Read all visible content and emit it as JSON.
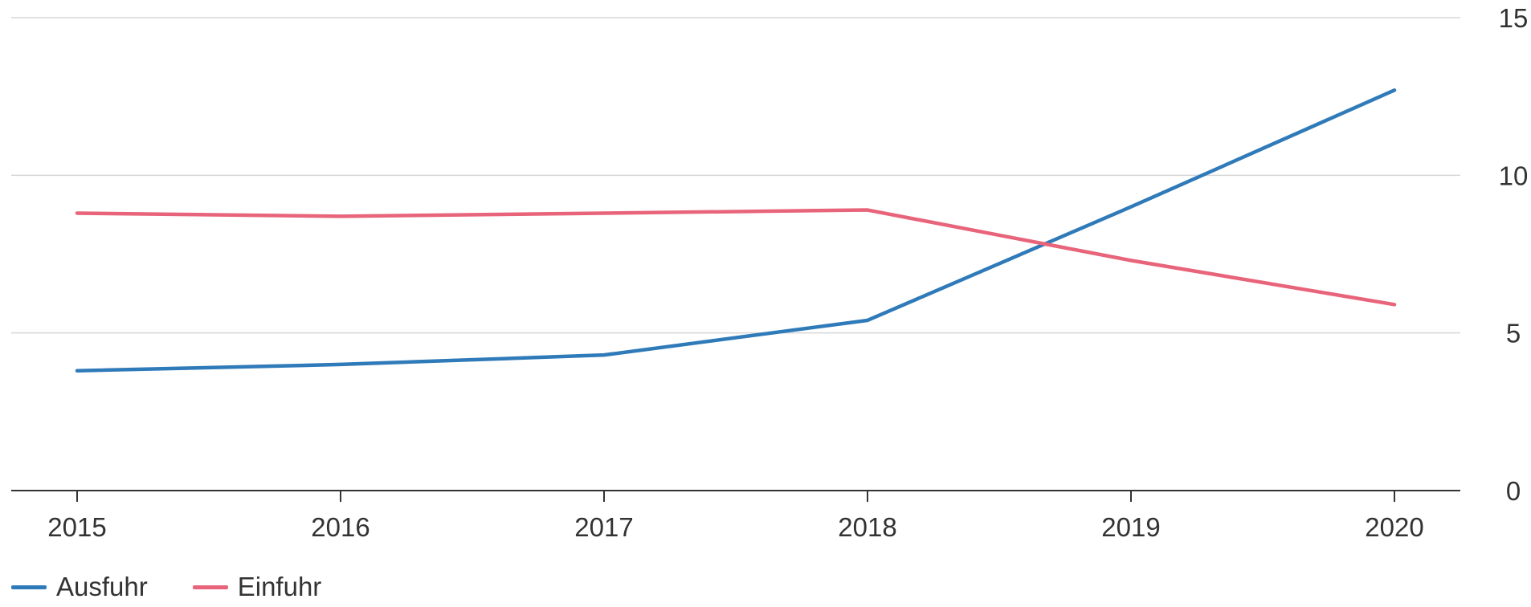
{
  "chart_data": {
    "type": "line",
    "title": "",
    "xlabel": "",
    "ylabel": "",
    "categories": [
      "2015",
      "2016",
      "2017",
      "2018",
      "2019",
      "2020"
    ],
    "ylim": [
      0,
      15
    ],
    "yticks": [
      "0",
      "5",
      "10",
      "15"
    ],
    "y_axis_side": "right",
    "grid": true,
    "legend_position": "bottom-left",
    "series": [
      {
        "name": "Ausfuhr",
        "color": "#2f7ab9",
        "values": [
          3.8,
          4.0,
          4.3,
          5.4,
          9.0,
          12.7
        ]
      },
      {
        "name": "Einfuhr",
        "color": "#e8647a",
        "values": [
          8.8,
          8.7,
          8.8,
          8.9,
          7.3,
          5.9
        ]
      }
    ]
  }
}
